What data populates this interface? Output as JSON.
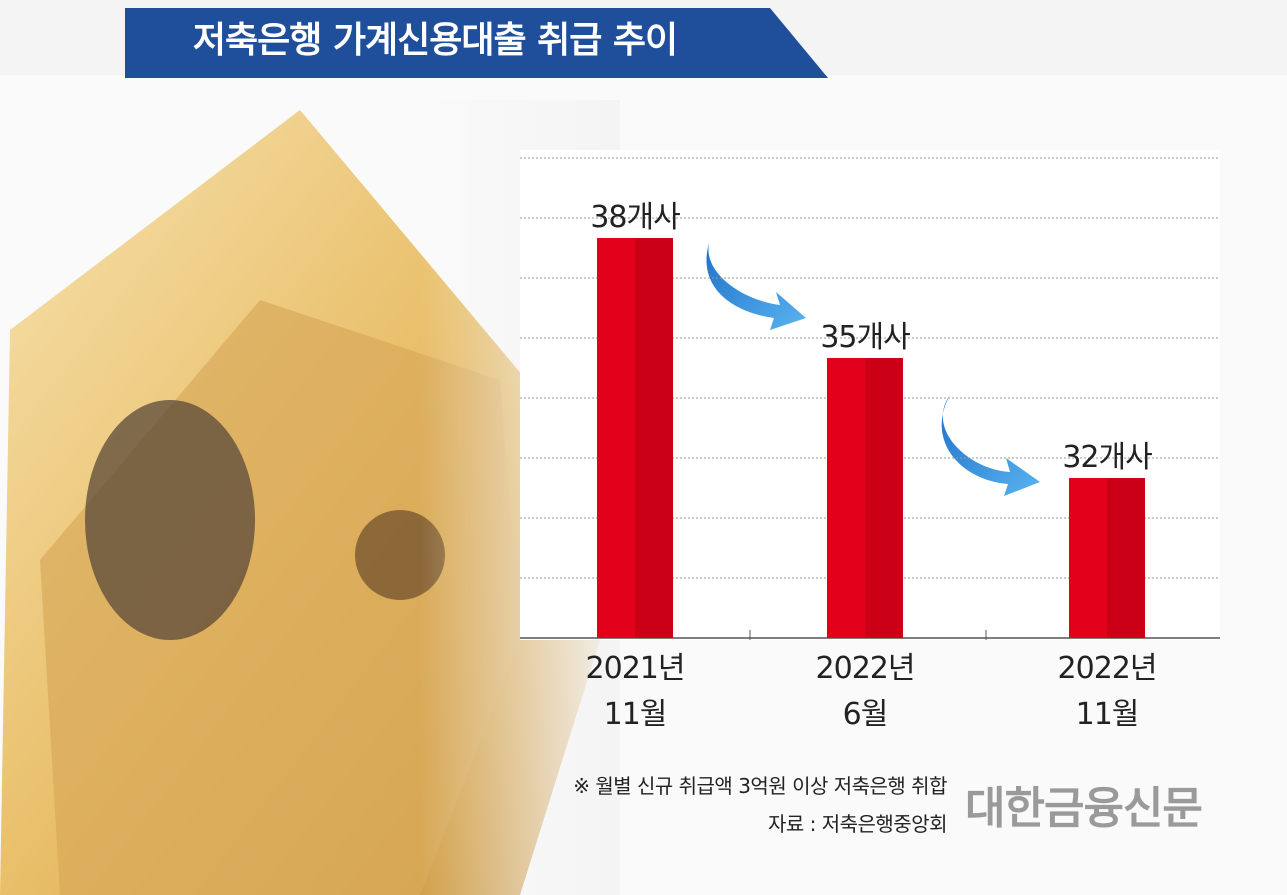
{
  "chart_data": {
    "type": "bar",
    "title": "저축은행 가계신용대출 취급 추이",
    "categories": [
      "2021년\n11월",
      "2022년\n6월",
      "2022년\n11월"
    ],
    "values": [
      38,
      35,
      32
    ],
    "value_labels": [
      "38개사",
      "35개사",
      "32개사"
    ],
    "color": "#e2001a",
    "ylim": [
      28,
      40
    ],
    "grid": true,
    "notes": [
      "※ 월별 신규 취급액 3억원 이상 저축은행 취합",
      "자료 : 저축은행중앙회"
    ],
    "source_logo": "대한금융신문"
  }
}
